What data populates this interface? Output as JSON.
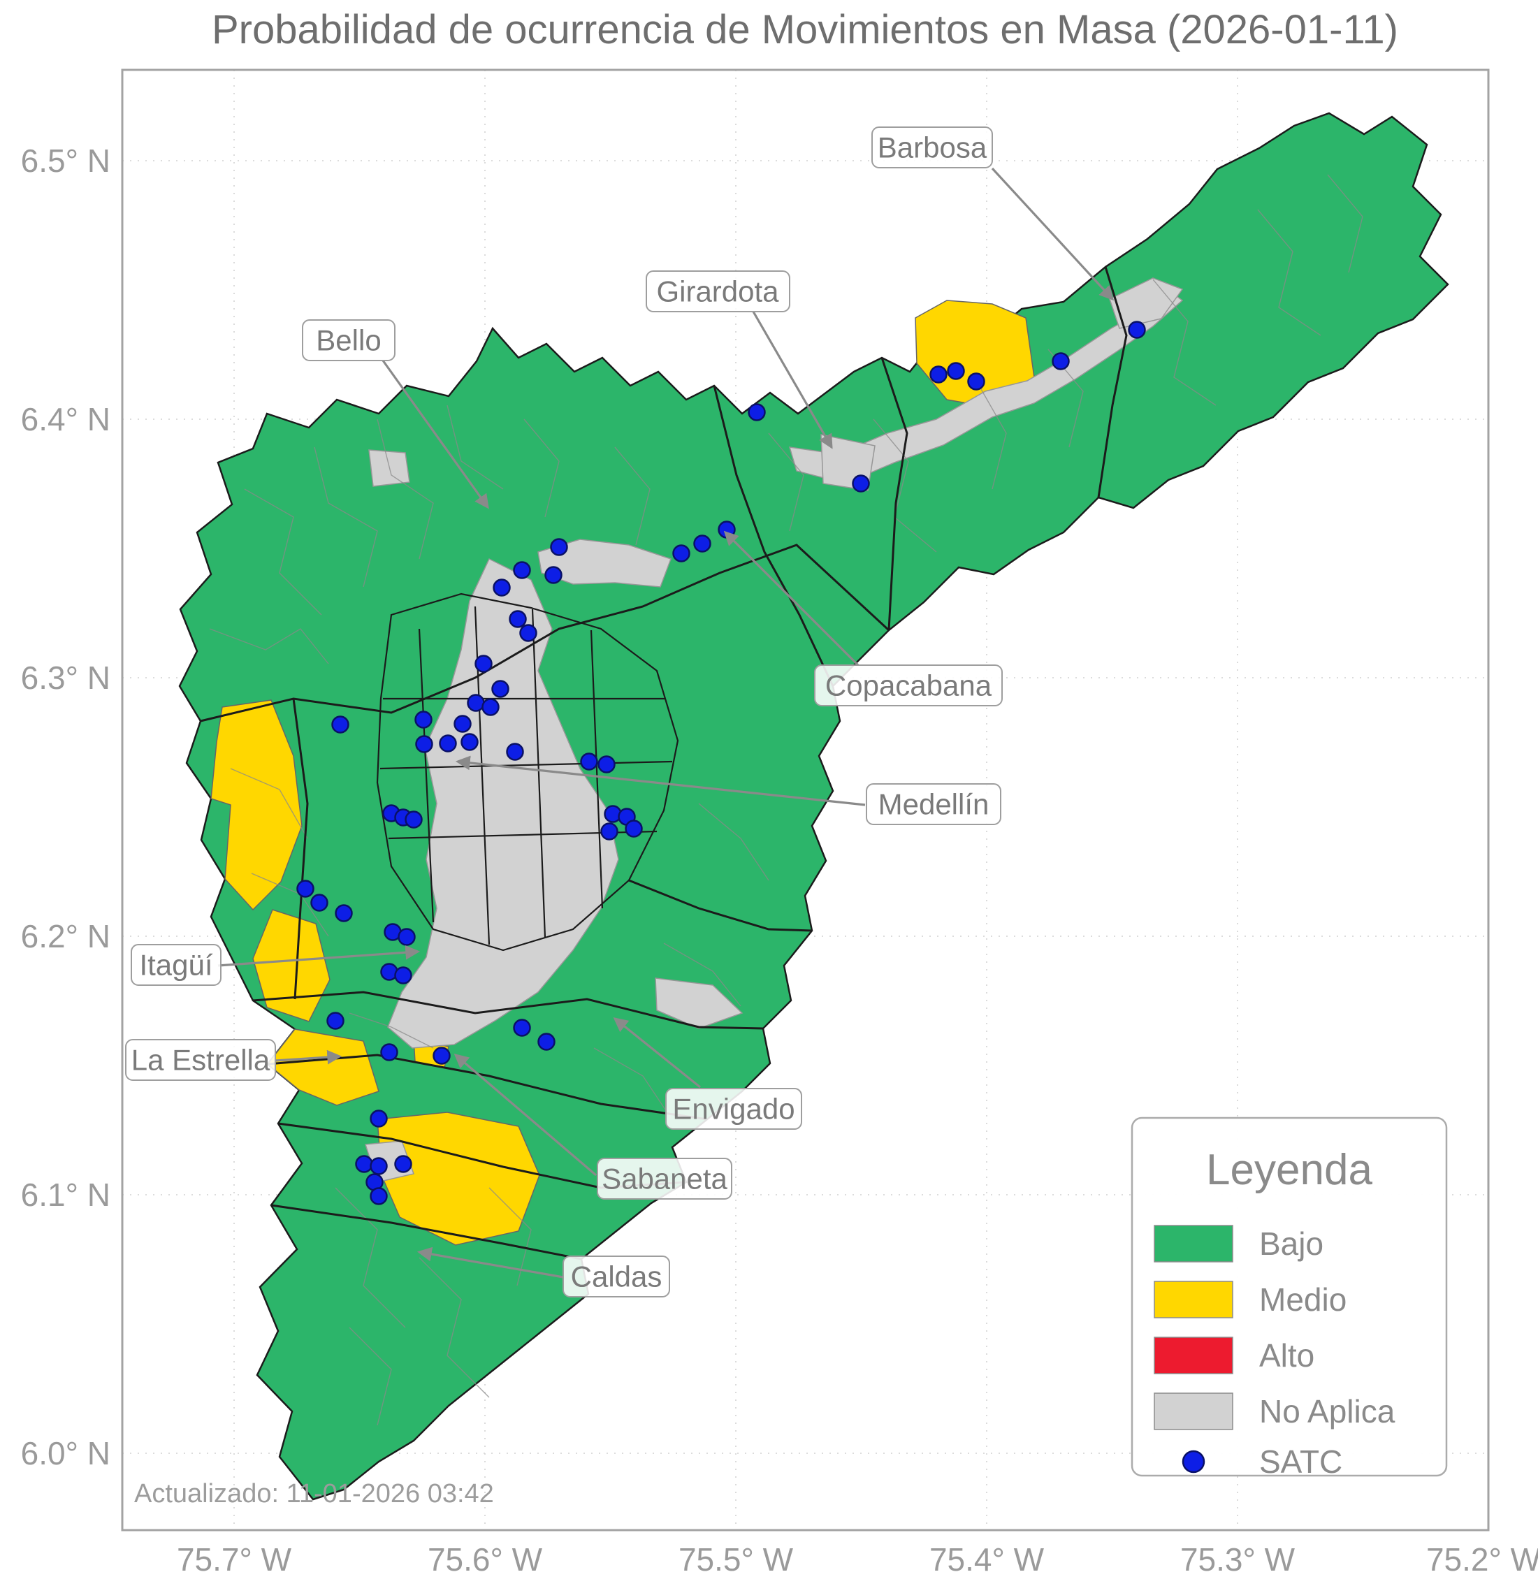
{
  "title": "Probabilidad de ocurrencia de Movimientos en Masa (2026-01-11)",
  "updated_text": "Actualizado: 11-01-2026 03:42",
  "colors": {
    "bajo": "#2cb56a",
    "medio": "#ffd700",
    "alto": "#ed1b2f",
    "no_aplica": "#d2d2d2",
    "satc_fill": "#0d1ee6",
    "satc_edge": "#0a1166",
    "text_gray": "#7a7a7a"
  },
  "axes": {
    "x_ticks": [
      "75.7° W",
      "75.6° W",
      "75.5° W",
      "75.4° W",
      "75.3° W",
      "75.2° W"
    ],
    "y_ticks": [
      "6.5° N",
      "6.4° N",
      "6.3° N",
      "6.2° N",
      "6.1° N",
      "6.0° N"
    ]
  },
  "legend": {
    "title": "Leyenda",
    "items": [
      {
        "label": "Bajo",
        "type": "swatch",
        "color_key": "bajo"
      },
      {
        "label": "Medio",
        "type": "swatch",
        "color_key": "medio"
      },
      {
        "label": "Alto",
        "type": "swatch",
        "color_key": "alto"
      },
      {
        "label": "No Aplica",
        "type": "swatch",
        "color_key": "no_aplica"
      },
      {
        "label": "SATC",
        "type": "dot",
        "color_key": "satc_fill"
      }
    ]
  },
  "annotations": [
    {
      "label": "Barbosa"
    },
    {
      "label": "Girardota"
    },
    {
      "label": "Bello"
    },
    {
      "label": "Copacabana"
    },
    {
      "label": "Medellín"
    },
    {
      "label": "Itagüí"
    },
    {
      "label": "La Estrella"
    },
    {
      "label": "Envigado"
    },
    {
      "label": "Sabaneta"
    },
    {
      "label": "Caldas"
    }
  ],
  "map_data": {
    "levels_shown_on_map": [
      "Bajo",
      "Medio",
      "No Aplica"
    ],
    "satc_points": [
      [
        1627,
        472
      ],
      [
        1518,
        517
      ],
      [
        1343,
        536
      ],
      [
        1368,
        531
      ],
      [
        1397,
        546
      ],
      [
        1083,
        590
      ],
      [
        1232,
        692
      ],
      [
        1040,
        758
      ],
      [
        1005,
        778
      ],
      [
        975,
        792
      ],
      [
        800,
        783
      ],
      [
        747,
        816
      ],
      [
        792,
        823
      ],
      [
        718,
        841
      ],
      [
        741,
        886
      ],
      [
        756,
        906
      ],
      [
        692,
        950
      ],
      [
        716,
        986
      ],
      [
        681,
        1006
      ],
      [
        702,
        1012
      ],
      [
        606,
        1030
      ],
      [
        662,
        1036
      ],
      [
        487,
        1037
      ],
      [
        607,
        1065
      ],
      [
        641,
        1064
      ],
      [
        672,
        1062
      ],
      [
        737,
        1076
      ],
      [
        843,
        1090
      ],
      [
        868,
        1094
      ],
      [
        560,
        1164
      ],
      [
        577,
        1170
      ],
      [
        592,
        1173
      ],
      [
        877,
        1165
      ],
      [
        897,
        1169
      ],
      [
        907,
        1186
      ],
      [
        872,
        1190
      ],
      [
        437,
        1272
      ],
      [
        457,
        1292
      ],
      [
        492,
        1307
      ],
      [
        562,
        1334
      ],
      [
        582,
        1341
      ],
      [
        557,
        1391
      ],
      [
        577,
        1396
      ],
      [
        480,
        1461
      ],
      [
        747,
        1471
      ],
      [
        782,
        1491
      ],
      [
        557,
        1506
      ],
      [
        632,
        1511
      ],
      [
        542,
        1601
      ],
      [
        521,
        1666
      ],
      [
        542,
        1669
      ],
      [
        577,
        1666
      ],
      [
        536,
        1692
      ],
      [
        542,
        1712
      ]
    ]
  }
}
